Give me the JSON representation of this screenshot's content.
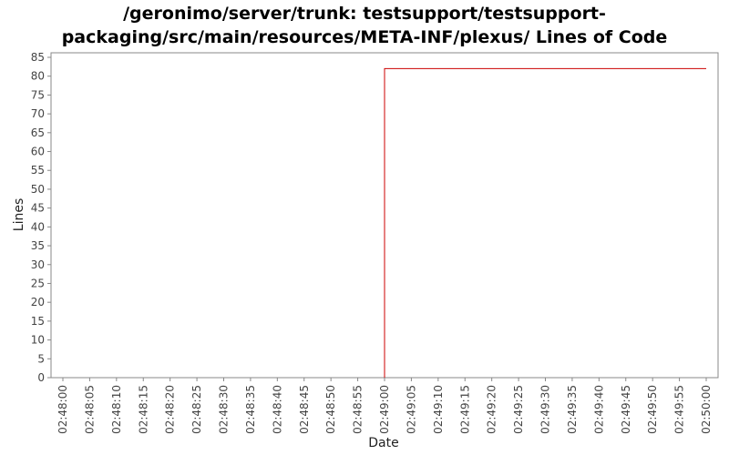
{
  "chart_data": {
    "type": "line",
    "title_lines": [
      "/geronimo/server/trunk: testsupport/testsupport-",
      "packaging/src/main/resources/META-INF/plexus/ Lines of Code"
    ],
    "xlabel": "Date",
    "ylabel": "Lines",
    "ylim": [
      0,
      85
    ],
    "y_ticks": [
      0,
      5,
      10,
      15,
      20,
      25,
      30,
      35,
      40,
      45,
      50,
      55,
      60,
      65,
      70,
      75,
      80,
      85
    ],
    "x_ticks": [
      "02:48:00",
      "02:48:05",
      "02:48:10",
      "02:48:15",
      "02:48:20",
      "02:48:25",
      "02:48:30",
      "02:48:35",
      "02:48:40",
      "02:48:45",
      "02:48:50",
      "02:48:55",
      "02:49:00",
      "02:49:05",
      "02:49:10",
      "02:49:15",
      "02:49:20",
      "02:49:25",
      "02:49:30",
      "02:49:35",
      "02:49:40",
      "02:49:45",
      "02:49:50",
      "02:49:55",
      "02:50:00"
    ],
    "grid": false,
    "series": [
      {
        "color": "#cc0000",
        "points": [
          {
            "x": "02:49:00",
            "y": 0
          },
          {
            "x": "02:49:00",
            "y": 82
          },
          {
            "x": "02:50:00",
            "y": 82
          }
        ]
      }
    ]
  }
}
